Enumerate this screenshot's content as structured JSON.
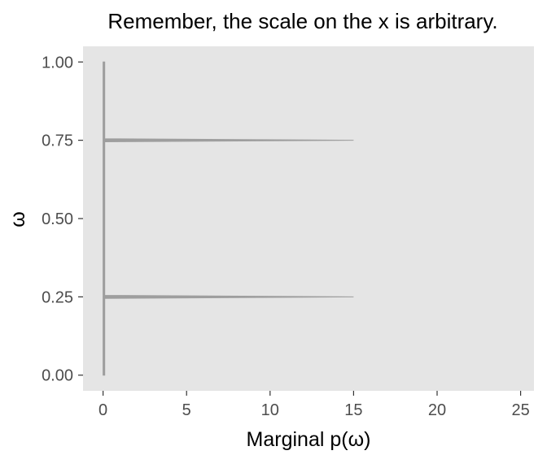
{
  "chart_data": {
    "type": "area",
    "title": "Remember, the scale on the x is arbitrary.",
    "xlabel": "Marginal p(ω)",
    "ylabel": "ω",
    "xlim": [
      -1.2,
      25.8
    ],
    "ylim": [
      -0.05,
      1.05
    ],
    "x_ticks": [
      0,
      5,
      10,
      15,
      20,
      25
    ],
    "x_tick_labels": [
      "0",
      "5",
      "10",
      "15",
      "20",
      "25"
    ],
    "y_ticks": [
      0,
      0.25,
      0.5,
      0.75,
      1
    ],
    "y_tick_labels": [
      "0.00",
      "0.25",
      "0.50",
      "0.75",
      "1.00"
    ],
    "grid": false,
    "panel_color": "#e5e5e5",
    "fill_color": "#9e9e9e",
    "series": [
      {
        "points": [
          {
            "omega": 0.0,
            "density": 0.1
          },
          {
            "omega": 0.245,
            "density": 0.1
          },
          {
            "omega": 0.245,
            "density": 0.0
          },
          {
            "omega": 0.25,
            "density": 15.0
          },
          {
            "omega": 0.255,
            "density": 0.0
          },
          {
            "omega": 0.255,
            "density": 0.1
          },
          {
            "omega": 0.745,
            "density": 0.1
          },
          {
            "omega": 0.745,
            "density": 0.0
          },
          {
            "omega": 0.75,
            "density": 15.0
          },
          {
            "omega": 0.755,
            "density": 0.0
          },
          {
            "omega": 0.755,
            "density": 0.1
          },
          {
            "omega": 1.0,
            "density": 0.1
          }
        ]
      }
    ]
  }
}
